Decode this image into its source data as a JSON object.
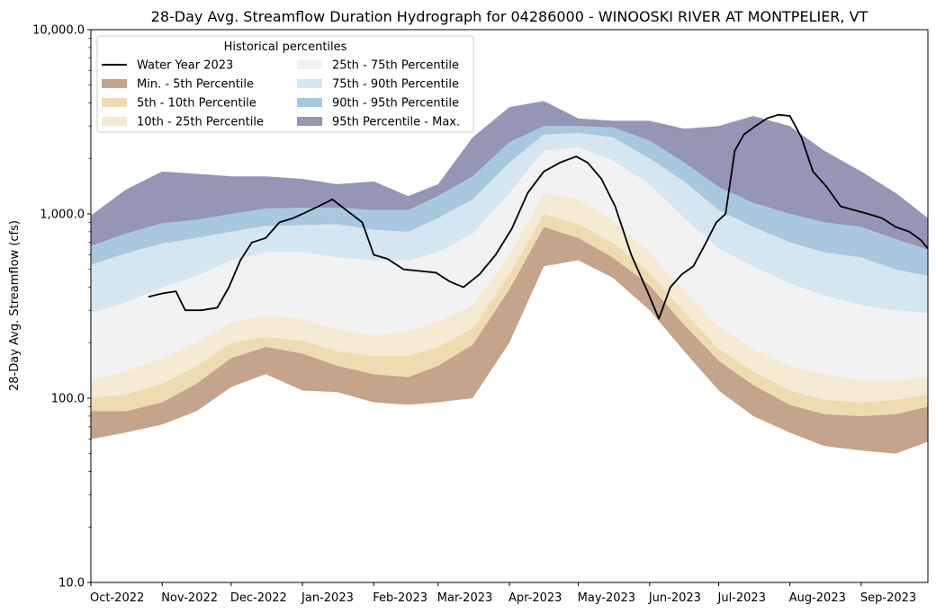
{
  "chart_data": {
    "type": "area",
    "title": "28-Day Avg. Streamflow Duration Hydrograph for 04286000 - WINOOSKI RIVER AT MONTPELIER, VT",
    "ylabel": "28-Day Avg. Streamflow (cfs)",
    "xlabel": "",
    "yscale": "log",
    "ylim": [
      10,
      10000
    ],
    "xlim": [
      "2022-10-01",
      "2023-09-30"
    ],
    "grid": false,
    "legend_position": "top-left",
    "legend_title": "Historical percentiles",
    "y_ticks": [
      {
        "value": 10,
        "label": "10.0"
      },
      {
        "value": 100,
        "label": "100.0"
      },
      {
        "value": 1000,
        "label": "1,000.0"
      },
      {
        "value": 10000,
        "label": "10,000.0"
      }
    ],
    "x_ticks": [
      {
        "date": "2022-10-01",
        "label": "Oct-2022"
      },
      {
        "date": "2022-11-01",
        "label": "Nov-2022"
      },
      {
        "date": "2022-12-01",
        "label": "Dec-2022"
      },
      {
        "date": "2023-01-01",
        "label": "Jan-2023"
      },
      {
        "date": "2023-02-01",
        "label": "Feb-2023"
      },
      {
        "date": "2023-03-01",
        "label": "Mar-2023"
      },
      {
        "date": "2023-04-01",
        "label": "Apr-2023"
      },
      {
        "date": "2023-05-01",
        "label": "May-2023"
      },
      {
        "date": "2023-06-01",
        "label": "Jun-2023"
      },
      {
        "date": "2023-07-01",
        "label": "Jul-2023"
      },
      {
        "date": "2023-08-01",
        "label": "Aug-2023"
      },
      {
        "date": "2023-09-01",
        "label": "Sep-2023"
      }
    ],
    "legend": [
      {
        "label": "Water Year 2023",
        "kind": "line",
        "color": "#000000"
      },
      {
        "label": "Min. - 5th Percentile",
        "kind": "patch",
        "color": "#c4a48b"
      },
      {
        "label": "5th - 10th Percentile",
        "kind": "patch",
        "color": "#eedbb2"
      },
      {
        "label": "10th - 25th Percentile",
        "kind": "patch",
        "color": "#f5ead4"
      },
      {
        "label": "25th - 75th Percentile",
        "kind": "patch",
        "color": "#f2f2f2"
      },
      {
        "label": "75th - 90th Percentile",
        "kind": "patch",
        "color": "#d5e6f0"
      },
      {
        "label": "90th - 95th Percentile",
        "kind": "patch",
        "color": "#a8c8df"
      },
      {
        "label": "95th Percentile - Max.",
        "kind": "patch",
        "color": "#9595b5"
      }
    ],
    "percentile_dates": [
      "2022-10-01",
      "2022-10-16",
      "2022-11-01",
      "2022-11-16",
      "2022-12-01",
      "2022-12-16",
      "2023-01-01",
      "2023-01-16",
      "2023-02-01",
      "2023-02-16",
      "2023-03-01",
      "2023-03-16",
      "2023-04-01",
      "2023-04-16",
      "2023-05-01",
      "2023-05-16",
      "2023-06-01",
      "2023-06-16",
      "2023-07-01",
      "2023-07-16",
      "2023-08-01",
      "2023-08-16",
      "2023-09-01",
      "2023-09-16",
      "2023-09-30"
    ],
    "percentile_bands": {
      "min": [
        60,
        65,
        72,
        85,
        115,
        135,
        110,
        108,
        95,
        92,
        95,
        100,
        200,
        520,
        560,
        450,
        300,
        180,
        110,
        80,
        65,
        55,
        52,
        50,
        58
      ],
      "p05": [
        85,
        85,
        95,
        120,
        165,
        190,
        175,
        150,
        135,
        130,
        150,
        195,
        390,
        850,
        740,
        580,
        410,
        250,
        160,
        118,
        92,
        82,
        80,
        82,
        90
      ],
      "p10": [
        100,
        105,
        120,
        150,
        200,
        215,
        205,
        180,
        170,
        170,
        190,
        240,
        470,
        1000,
        880,
        700,
        480,
        295,
        185,
        140,
        110,
        98,
        95,
        98,
        105
      ],
      "p25": [
        125,
        140,
        165,
        200,
        260,
        280,
        270,
        235,
        220,
        230,
        260,
        320,
        600,
        1300,
        1200,
        920,
        620,
        380,
        245,
        185,
        150,
        135,
        125,
        125,
        130
      ],
      "p75": [
        290,
        330,
        400,
        460,
        560,
        620,
        620,
        580,
        560,
        560,
        620,
        780,
        1300,
        2200,
        2300,
        1950,
        1450,
        950,
        650,
        520,
        420,
        360,
        320,
        300,
        290
      ],
      "p90": [
        530,
        610,
        690,
        740,
        800,
        860,
        870,
        880,
        820,
        800,
        950,
        1200,
        1900,
        2700,
        2750,
        2600,
        2000,
        1500,
        1050,
        850,
        700,
        620,
        580,
        500,
        460
      ],
      "p95": [
        670,
        780,
        890,
        930,
        1000,
        1070,
        1080,
        1080,
        1050,
        1050,
        1250,
        1600,
        2450,
        3000,
        3000,
        2950,
        2500,
        1900,
        1400,
        1150,
        1000,
        900,
        850,
        730,
        640
      ],
      "max": [
        980,
        1350,
        1700,
        1650,
        1600,
        1600,
        1550,
        1450,
        1500,
        1250,
        1450,
        2600,
        3800,
        4100,
        3300,
        3200,
        3200,
        2900,
        3000,
        3400,
        3000,
        2200,
        1700,
        1300,
        950
      ]
    },
    "series": [
      {
        "name": "Water Year 2023",
        "x": [
          "2022-10-26",
          "2022-11-01",
          "2022-11-07",
          "2022-11-11",
          "2022-11-18",
          "2022-11-25",
          "2022-11-30",
          "2022-12-05",
          "2022-12-10",
          "2022-12-16",
          "2022-12-22",
          "2022-12-28",
          "2023-01-01",
          "2023-01-08",
          "2023-01-14",
          "2023-01-20",
          "2023-01-27",
          "2023-02-01",
          "2023-02-07",
          "2023-02-14",
          "2023-02-21",
          "2023-02-28",
          "2023-03-06",
          "2023-03-12",
          "2023-03-19",
          "2023-03-26",
          "2023-04-02",
          "2023-04-09",
          "2023-04-16",
          "2023-04-23",
          "2023-04-30",
          "2023-05-05",
          "2023-05-11",
          "2023-05-17",
          "2023-05-24",
          "2023-05-31",
          "2023-06-05",
          "2023-06-10",
          "2023-06-15",
          "2023-06-20",
          "2023-06-25",
          "2023-06-30",
          "2023-07-04",
          "2023-07-08",
          "2023-07-12",
          "2023-07-17",
          "2023-07-22",
          "2023-07-27",
          "2023-08-01",
          "2023-08-06",
          "2023-08-11",
          "2023-08-17",
          "2023-08-23",
          "2023-08-29",
          "2023-09-04",
          "2023-09-10",
          "2023-09-16",
          "2023-09-22",
          "2023-09-27",
          "2023-09-30"
        ],
        "y": [
          355,
          370,
          380,
          300,
          300,
          310,
          400,
          560,
          700,
          740,
          900,
          950,
          1000,
          1100,
          1200,
          1050,
          900,
          600,
          570,
          500,
          490,
          480,
          430,
          400,
          470,
          600,
          830,
          1300,
          1700,
          1900,
          2050,
          1900,
          1550,
          1100,
          600,
          380,
          270,
          400,
          470,
          520,
          680,
          900,
          1000,
          2200,
          2700,
          3000,
          3300,
          3450,
          3400,
          2600,
          1700,
          1400,
          1100,
          1050,
          1000,
          950,
          850,
          800,
          720,
          650
        ]
      }
    ]
  }
}
